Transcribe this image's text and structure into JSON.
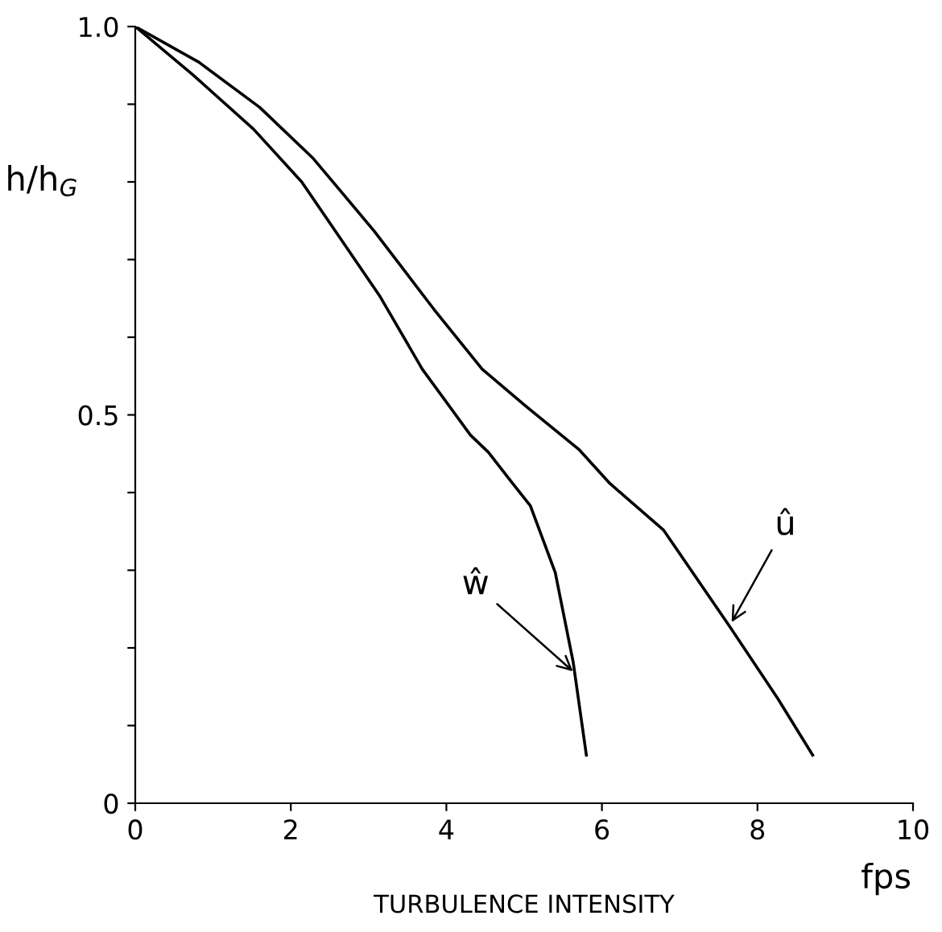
{
  "chart_data": {
    "type": "line",
    "xlabel": "TURBULENCE INTENSITY",
    "ylabel": "h/h$_{G}$",
    "series": [
      {
        "color": "#000000",
        "x": [
          0,
          0.82,
          1.6,
          2.29,
          3.07,
          3.84,
          4.46,
          5.0,
          5.71,
          6.1,
          6.79,
          7.64,
          8.26,
          8.71
        ],
        "values": [
          1.0,
          0.954,
          0.896,
          0.83,
          0.737,
          0.636,
          0.559,
          0.513,
          0.455,
          0.412,
          0.352,
          0.228,
          0.135,
          0.062
        ]
      },
      {
        "color": "#000000",
        "x": [
          0,
          0.74,
          1.52,
          2.14,
          2.68,
          3.15,
          3.69,
          4.31,
          4.54,
          4.85,
          5.08,
          5.4,
          5.63,
          5.8
        ],
        "values": [
          1.0,
          0.938,
          0.868,
          0.8,
          0.721,
          0.652,
          0.559,
          0.474,
          0.452,
          0.412,
          0.383,
          0.297,
          0.182,
          0.062
        ]
      }
    ],
    "annotations": [
      {
        "text": "û",
        "x": 7.64,
        "y": 0.228
      },
      {
        "text": "ŵ",
        "x": 5.67,
        "y": 0.166
      },
      "fps"
    ],
    "xlim": [
      0,
      10
    ],
    "ylim": [
      0,
      1.0
    ],
    "xticks": [
      0,
      2,
      4,
      6,
      8,
      10
    ],
    "yticks": [
      0,
      {
        "value": 0.1,
        "label": null
      },
      {
        "value": 0.2,
        "label": null
      },
      {
        "value": 0.3,
        "label": null
      },
      {
        "value": 0.4,
        "label": null
      },
      {
        "value": 0.5,
        "label": "0.5"
      },
      {
        "value": 0.6,
        "label": null
      },
      {
        "value": 0.7,
        "label": null
      },
      {
        "value": 0.8,
        "label": null
      },
      {
        "value": 0.9,
        "label": null
      },
      {
        "value": 1.0,
        "label": "1.0"
      }
    ],
    "grid": false,
    "legend": false,
    "marker": "none",
    "line_style": "solid"
  }
}
